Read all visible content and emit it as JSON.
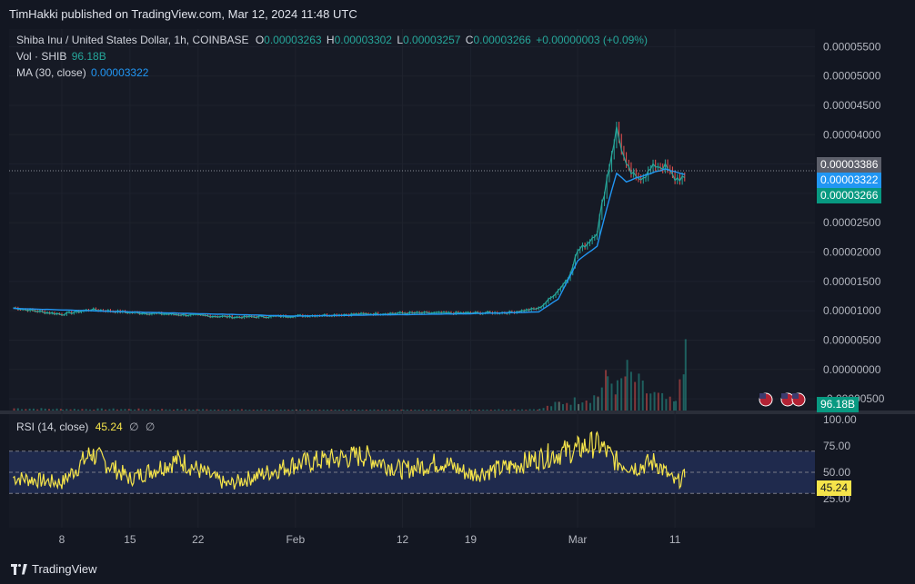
{
  "header": {
    "publisher": "TimHakki published on TradingView.com, Mar 12, 2024 11:48 UTC"
  },
  "legend": {
    "symbol": "Shiba Inu / United States Dollar, 1h, COINBASE",
    "o_label": "O",
    "o_value": "0.00003263",
    "h_label": "H",
    "h_value": "0.00003302",
    "l_label": "L",
    "l_value": "0.00003257",
    "c_label": "C",
    "c_value": "0.00003266",
    "change": "+0.00000003 (+0.09%)",
    "vol_label": "Vol · SHIB",
    "vol_value": "96.18B",
    "ma_label": "MA (30, close)",
    "ma_value": "0.00003322"
  },
  "rsi_legend": {
    "label": "RSI (14, close)",
    "value": "45.24",
    "s1": "∅",
    "s2": "∅"
  },
  "price_labels": {
    "current": "0.00003386",
    "ma": "0.00003322",
    "close": "0.00003266",
    "volume": "96.18B",
    "rsi": "45.24"
  },
  "colors": {
    "background": "#131722",
    "up": "#26a69a",
    "down": "#ef5350",
    "ma": "#2196f3",
    "rsi": "#f5e44a",
    "current_label": "#5d606b",
    "close_label": "#089981"
  },
  "footer": {
    "brand": "TradingView"
  },
  "chart_data": [
    {
      "type": "candlestick",
      "title": "Shiba Inu / United States Dollar, 1h, COINBASE",
      "x_ticks": [
        "8",
        "15",
        "22",
        "Feb",
        "12",
        "19",
        "Mar",
        "11"
      ],
      "y_ticks": [
        "0.00005500",
        "0.00005000",
        "0.00004500",
        "0.00004000",
        "0.00003500",
        "0.00003000",
        "0.00002500",
        "0.00002000",
        "0.00001500",
        "0.00001000",
        "0.00000500",
        "0.00000000",
        "-0.00000500"
      ],
      "ylim": [
        -7e-06,
        5.8e-05
      ],
      "series": [
        {
          "name": "close",
          "x": [
            "Jan 3",
            "Jan 6",
            "Jan 8",
            "Jan 11",
            "Jan 15",
            "Jan 22",
            "Jan 26",
            "Feb 1",
            "Feb 5",
            "Feb 12",
            "Feb 19",
            "Feb 23",
            "Feb 26",
            "Feb 27",
            "Feb 28",
            "Feb 29",
            "Mar 1",
            "Mar 2",
            "Mar 3",
            "Mar 4",
            "Mar 5",
            "Mar 6",
            "Mar 7",
            "Mar 8",
            "Mar 9",
            "Mar 10",
            "Mar 11",
            "Mar 12"
          ],
          "values": [
            1.05e-05,
            9.8e-06,
            9.4e-06,
            1.02e-05,
            9.7e-06,
            9.2e-06,
            8.9e-06,
            9.1e-06,
            9.3e-06,
            9.6e-06,
            9.6e-06,
            9.7e-06,
            1.04e-05,
            1.18e-05,
            1.35e-05,
            1.55e-05,
            2.02e-05,
            2.15e-05,
            2.35e-05,
            3.25e-05,
            4.1e-05,
            3.45e-05,
            3.25e-05,
            3.32e-05,
            3.48e-05,
            3.45e-05,
            3.25e-05,
            3.27e-05
          ]
        },
        {
          "name": "MA (30, close)",
          "x": [
            "Jan 3",
            "Jan 15",
            "Feb 1",
            "Feb 19",
            "Feb 26",
            "Feb 28",
            "Mar 1",
            "Mar 3",
            "Mar 4",
            "Mar 5",
            "Mar 6",
            "Mar 8",
            "Mar 10",
            "Mar 12"
          ],
          "values": [
            1.04e-05,
            9.8e-06,
            9.1e-06,
            9.5e-06,
            9.8e-06,
            1.2e-05,
            1.85e-05,
            2.1e-05,
            2.75e-05,
            3.35e-05,
            3.2e-05,
            3.32e-05,
            3.42e-05,
            3.32e-05
          ]
        }
      ]
    },
    {
      "type": "bar",
      "title": "Vol · SHIB",
      "x": [
        "Jan 3",
        "Jan 8",
        "Jan 15",
        "Jan 22",
        "Feb 1",
        "Feb 12",
        "Feb 19",
        "Feb 26",
        "Feb 28",
        "Mar 1",
        "Mar 3",
        "Mar 4",
        "Mar 5",
        "Mar 6",
        "Mar 8",
        "Mar 10",
        "Mar 11",
        "Mar 12"
      ],
      "values": [
        3,
        2,
        2,
        1.5,
        1,
        1,
        1,
        2,
        10,
        14,
        20,
        45,
        30,
        50,
        25,
        15,
        10,
        96.18
      ],
      "note_unit": "B"
    },
    {
      "type": "line",
      "title": "RSI (14, close)",
      "y_ticks": [
        "100.00",
        "75.00",
        "50.00",
        "25.00"
      ],
      "ylim": [
        0,
        100
      ],
      "bands": [
        70,
        50,
        30
      ],
      "series": [
        {
          "name": "RSI",
          "x": [
            "Jan 3",
            "Jan 8",
            "Jan 11",
            "Jan 15",
            "Jan 20",
            "Jan 25",
            "Feb 1",
            "Feb 8",
            "Feb 12",
            "Feb 16",
            "Feb 19",
            "Feb 23",
            "Feb 27",
            "Mar 1",
            "Mar 3",
            "Mar 5",
            "Mar 7",
            "Mar 9",
            "Mar 11",
            "Mar 12"
          ],
          "values": [
            45,
            40,
            68,
            44,
            62,
            38,
            58,
            66,
            52,
            60,
            48,
            55,
            66,
            72,
            78,
            60,
            55,
            60,
            40,
            45.24
          ]
        }
      ]
    }
  ]
}
